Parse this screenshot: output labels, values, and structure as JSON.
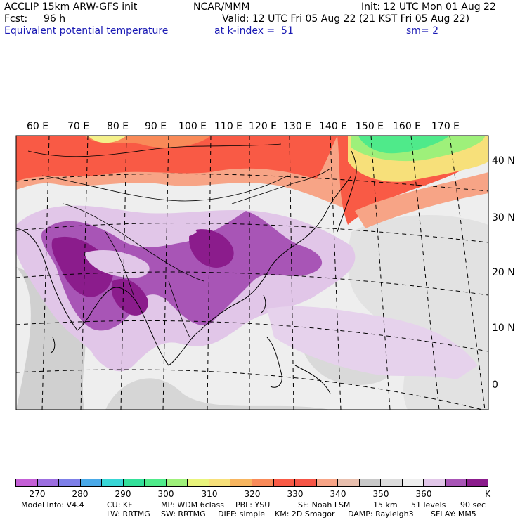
{
  "header": {
    "model": "ACCLIP 15km ARW-GFS init",
    "org": "NCAR/MMM",
    "init": "Init: 12 UTC Mon 01 Aug 22",
    "fcst_label": "Fcst:",
    "fcst_value": "96 h",
    "valid": "Valid: 12 UTC Fri 05 Aug 22 (21 KST Fri 05 Aug 22)",
    "field": "Equivalent potential temperature",
    "level": "at k-index =  51",
    "smooth": "sm= 2"
  },
  "map": {
    "lon_labels": [
      "60 E",
      "70 E",
      "80 E",
      "90 E",
      "100 E",
      "110 E",
      "120 E",
      "130 E",
      "140 E",
      "150 E",
      "160 E",
      "170 E"
    ],
    "lat_labels": [
      "40 N",
      "30 N",
      "20 N",
      "10 N",
      "0"
    ],
    "colors": {
      "ocean_light": "#eeeeee",
      "ocean_mid": "#d9d9d9",
      "land_grey": "#c8c8c8",
      "purple_light": "#e1c6e8",
      "purple_mid": "#a855b6",
      "purple_dark": "#8b1c8c",
      "red": "#f95a45",
      "salmon": "#f7a486",
      "green": "#4fea8a",
      "yellow": "#f4f08a"
    }
  },
  "colorbar": {
    "unit": "K",
    "ticks": [
      "270",
      "280",
      "290",
      "300",
      "310",
      "320",
      "330",
      "340",
      "350",
      "360"
    ],
    "colors": [
      "#c45fd6",
      "#9c6ee0",
      "#7d7fe8",
      "#4aa9e8",
      "#38d6d6",
      "#33e09a",
      "#4fea8a",
      "#9ef07a",
      "#e9f47c",
      "#f7e07a",
      "#f7b55f",
      "#f98a58",
      "#f95a45",
      "#f55445",
      "#f7a486",
      "#e8bfae",
      "#c8c8c8",
      "#dcdcdc",
      "#eeeeee",
      "#e1c6e8",
      "#a855b6",
      "#8b1c8c"
    ]
  },
  "footer": {
    "line1": [
      "Model Info: V4.4",
      "CU: KF",
      "MP: WDM 6class",
      "PBL: YSU",
      "SF: Noah LSM",
      "15 km",
      "51 levels",
      "90 sec"
    ],
    "line2": [
      "LW: RRTMG",
      "SW: RRTMG",
      "DIFF: simple",
      "KM: 2D Smagor",
      "DAMP: Rayleigh3",
      "SFLAY: MM5"
    ]
  }
}
